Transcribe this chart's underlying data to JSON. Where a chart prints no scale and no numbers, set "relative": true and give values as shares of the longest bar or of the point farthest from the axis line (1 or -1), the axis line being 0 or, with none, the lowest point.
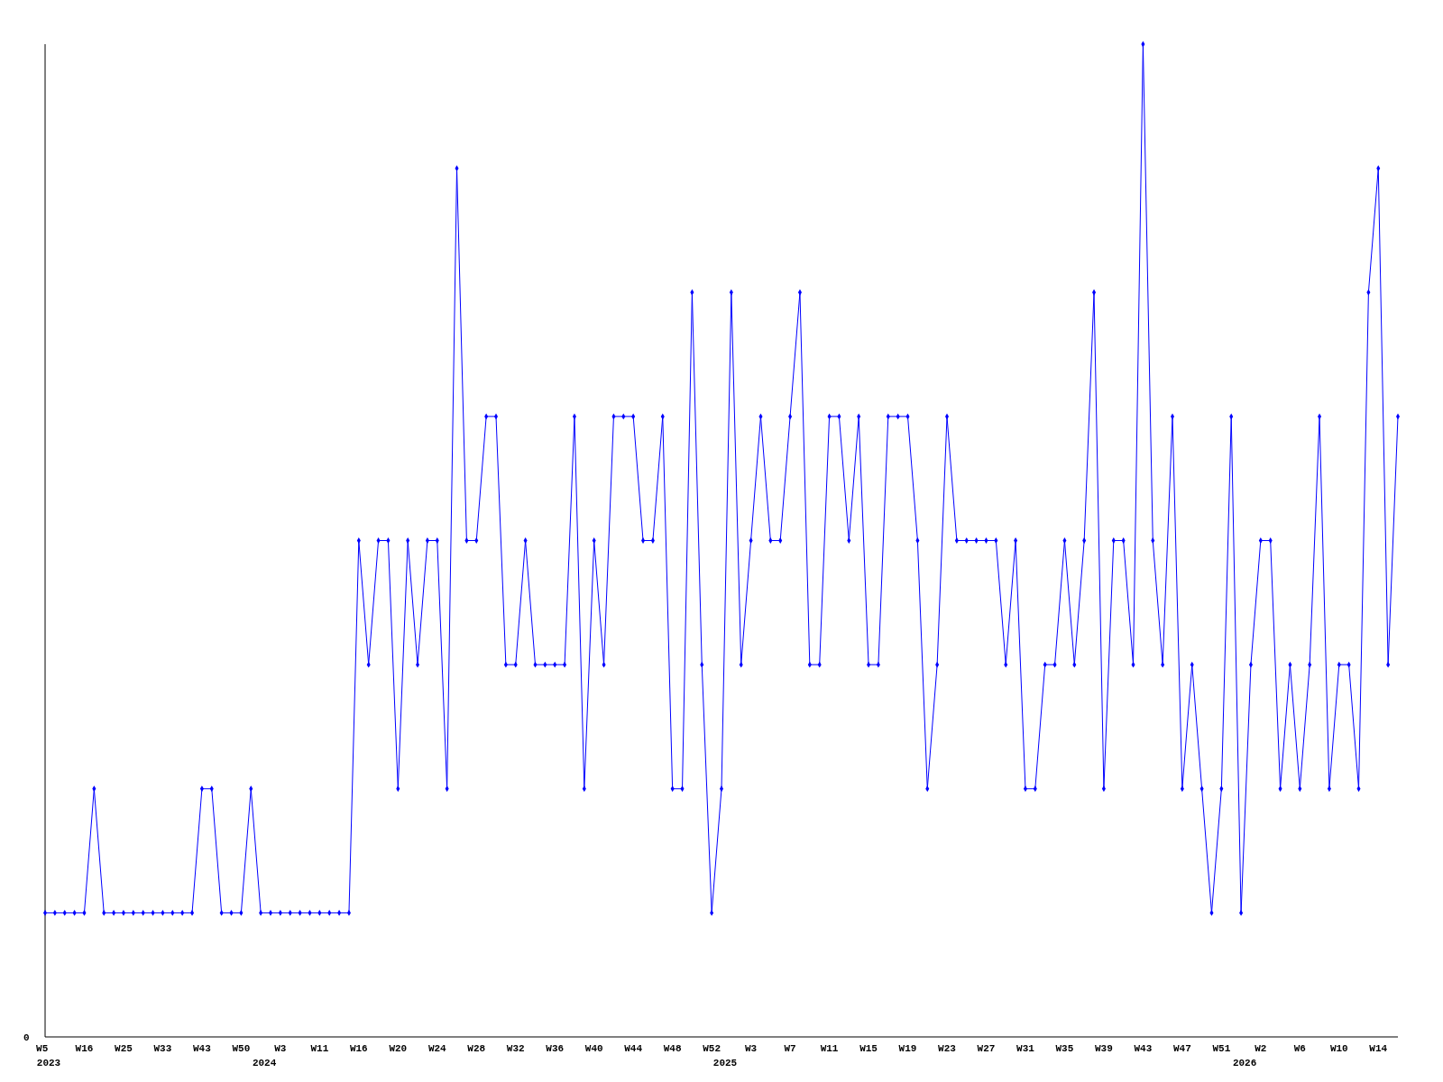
{
  "chart_data": {
    "type": "line",
    "relative": true,
    "marker": "diamond",
    "line_style": "solid",
    "grid": false,
    "annotations": [
      "0"
    ],
    "categories": [
      "W5\n2023",
      null,
      null,
      null,
      "W16",
      null,
      null,
      null,
      "W25",
      null,
      null,
      null,
      "W33",
      null,
      null,
      null,
      "W43",
      null,
      null,
      null,
      "W50",
      null,
      "\n2024",
      null,
      "W3",
      null,
      null,
      null,
      "W11",
      null,
      null,
      null,
      "W16",
      null,
      null,
      null,
      "W20",
      null,
      null,
      null,
      "W24",
      null,
      null,
      null,
      "W28",
      null,
      null,
      null,
      "W32",
      null,
      null,
      null,
      "W36",
      null,
      null,
      null,
      "W40",
      null,
      null,
      null,
      "W44",
      null,
      null,
      null,
      "W48",
      null,
      null,
      null,
      "W52",
      "\n2025",
      null,
      null,
      "W3",
      null,
      null,
      null,
      "W7",
      null,
      null,
      null,
      "W11",
      null,
      null,
      null,
      "W15",
      null,
      null,
      null,
      "W19",
      null,
      null,
      null,
      "W23",
      null,
      null,
      null,
      "W27",
      null,
      null,
      null,
      "W31",
      null,
      null,
      null,
      "W35",
      null,
      null,
      null,
      "W39",
      null,
      null,
      null,
      "W43",
      null,
      null,
      null,
      "W47",
      null,
      null,
      null,
      "W51",
      null,
      "\n2026",
      null,
      "W2",
      null,
      null,
      null,
      "W6",
      null,
      null,
      null,
      "W10",
      null,
      null,
      null,
      "W14",
      null,
      null
    ],
    "series": [
      {
        "color": "#0000ff",
        "values": [
          0.125,
          0.125,
          0.125,
          0.125,
          0.125,
          0.25,
          0.125,
          0.125,
          0.125,
          0.125,
          0.125,
          0.125,
          0.125,
          0.125,
          0.125,
          0.125,
          0.25,
          0.25,
          0.125,
          0.125,
          0.125,
          0.25,
          0.125,
          0.125,
          0.125,
          0.125,
          0.125,
          0.125,
          0.125,
          0.125,
          0.125,
          0.125,
          0.5,
          0.375,
          0.5,
          0.5,
          0.25,
          0.5,
          0.375,
          0.5,
          0.5,
          0.25,
          0.875,
          0.5,
          0.5,
          0.625,
          0.625,
          0.375,
          0.375,
          0.5,
          0.375,
          0.375,
          0.375,
          0.375,
          0.625,
          0.25,
          0.5,
          0.375,
          0.625,
          0.625,
          0.625,
          0.5,
          0.5,
          0.625,
          0.25,
          0.25,
          0.75,
          0.375,
          0.125,
          0.25,
          0.75,
          0.375,
          0.5,
          0.625,
          0.5,
          0.5,
          0.625,
          0.75,
          0.375,
          0.375,
          0.625,
          0.625,
          0.5,
          0.625,
          0.375,
          0.375,
          0.625,
          0.625,
          0.625,
          0.5,
          0.25,
          0.375,
          0.625,
          0.5,
          0.5,
          0.5,
          0.5,
          0.5,
          0.375,
          0.5,
          0.25,
          0.25,
          0.375,
          0.375,
          0.5,
          0.375,
          0.5,
          0.75,
          0.25,
          0.5,
          0.5,
          0.375,
          1,
          0.5,
          0.375,
          0.625,
          0.25,
          0.375,
          0.25,
          0.125,
          0.25,
          0.625,
          0.125,
          0.375,
          0.5,
          0.5,
          0.25,
          0.375,
          0.25,
          0.375,
          0.625,
          0.25,
          0.375,
          0.375,
          0.25,
          0.75,
          0.875,
          0.375,
          0.625
        ]
      }
    ]
  }
}
